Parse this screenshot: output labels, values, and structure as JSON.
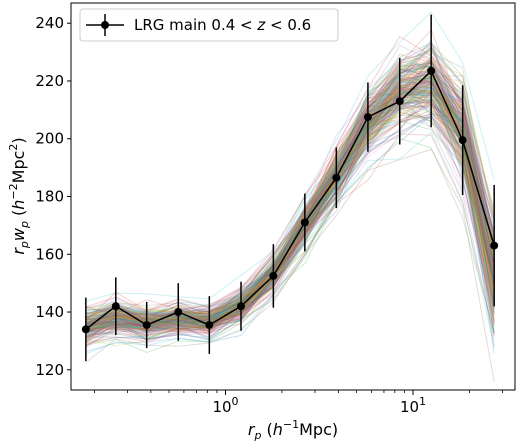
{
  "chart_data": {
    "type": "line",
    "title": "",
    "xlabel": "r_p (h^-1 Mpc)",
    "ylabel": "r_p w_p (h^-2 Mpc^2)",
    "xscale": "log",
    "xlim": [
      0.15,
      35
    ],
    "ylim": [
      113,
      247
    ],
    "grid": false,
    "legend_position": "top-left",
    "x_ticks": [
      {
        "value": 1,
        "label": "10^0"
      },
      {
        "value": 10,
        "label": "10^1"
      }
    ],
    "y_ticks": [
      {
        "value": 120,
        "label": "120"
      },
      {
        "value": 140,
        "label": "140"
      },
      {
        "value": 160,
        "label": "160"
      },
      {
        "value": 180,
        "label": "180"
      },
      {
        "value": 200,
        "label": "200"
      },
      {
        "value": 220,
        "label": "220"
      },
      {
        "value": 240,
        "label": "240"
      }
    ],
    "x": [
      0.18,
      0.26,
      0.38,
      0.56,
      0.82,
      1.21,
      1.8,
      2.65,
      3.9,
      5.75,
      8.5,
      12.5,
      18.4,
      27.1
    ],
    "series": [
      {
        "name": "LRG main 0.4 < z < 0.6",
        "style": "errorbar",
        "color": "#000000",
        "values": [
          134,
          142,
          135.5,
          140,
          135.5,
          142,
          152.5,
          171,
          186.5,
          207.5,
          213,
          223.5,
          199.5,
          163
        ],
        "errors": [
          11,
          10,
          8,
          10,
          10,
          8.5,
          11,
          10,
          10.5,
          12,
          15,
          19.5,
          19,
          21
        ]
      }
    ],
    "model_band": {
      "description": "mock realizations",
      "num_curves": 220,
      "center": [
        135,
        138,
        136,
        137.5,
        136.5,
        142,
        153,
        170,
        187,
        205,
        216,
        219,
        203,
        152
      ],
      "spread": [
        7,
        7,
        6.5,
        6.5,
        6,
        6.5,
        7.5,
        8.5,
        10,
        12,
        14,
        16,
        20,
        24
      ],
      "colors": [
        "#1f77b4",
        "#ff7f0e",
        "#2ca02c",
        "#d62728",
        "#9467bd",
        "#8c564b",
        "#e377c2",
        "#7f7f7f",
        "#bcbd22",
        "#17becf"
      ]
    }
  },
  "legend": {
    "label_prefix": "LRG main 0.4 < ",
    "label_var": "z",
    "label_suffix": " < 0.6"
  }
}
